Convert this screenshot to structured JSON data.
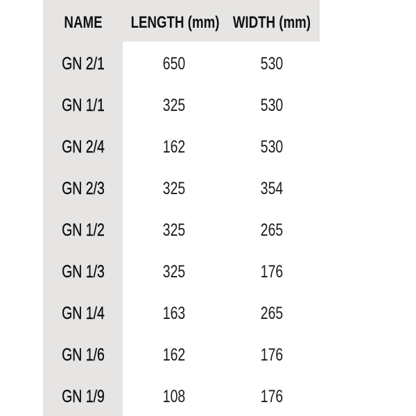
{
  "table": {
    "headers": [
      "NAME",
      "LENGTH (mm)",
      "WIDTH (mm)"
    ],
    "rows": [
      [
        "GN 2/1",
        "650",
        "530"
      ],
      [
        "GN 1/1",
        "325",
        "530"
      ],
      [
        "GN 2/4",
        "162",
        "530"
      ],
      [
        "GN 2/3",
        "325",
        "354"
      ],
      [
        "GN 1/2",
        "325",
        "265"
      ],
      [
        "GN 1/3",
        "325",
        "176"
      ],
      [
        "GN 1/4",
        "163",
        "265"
      ],
      [
        "GN 1/6",
        "162",
        "176"
      ],
      [
        "GN 1/9",
        "108",
        "176"
      ]
    ]
  },
  "colors": {
    "header_background": "#e6e5e4",
    "body_background": "#ffffff"
  }
}
